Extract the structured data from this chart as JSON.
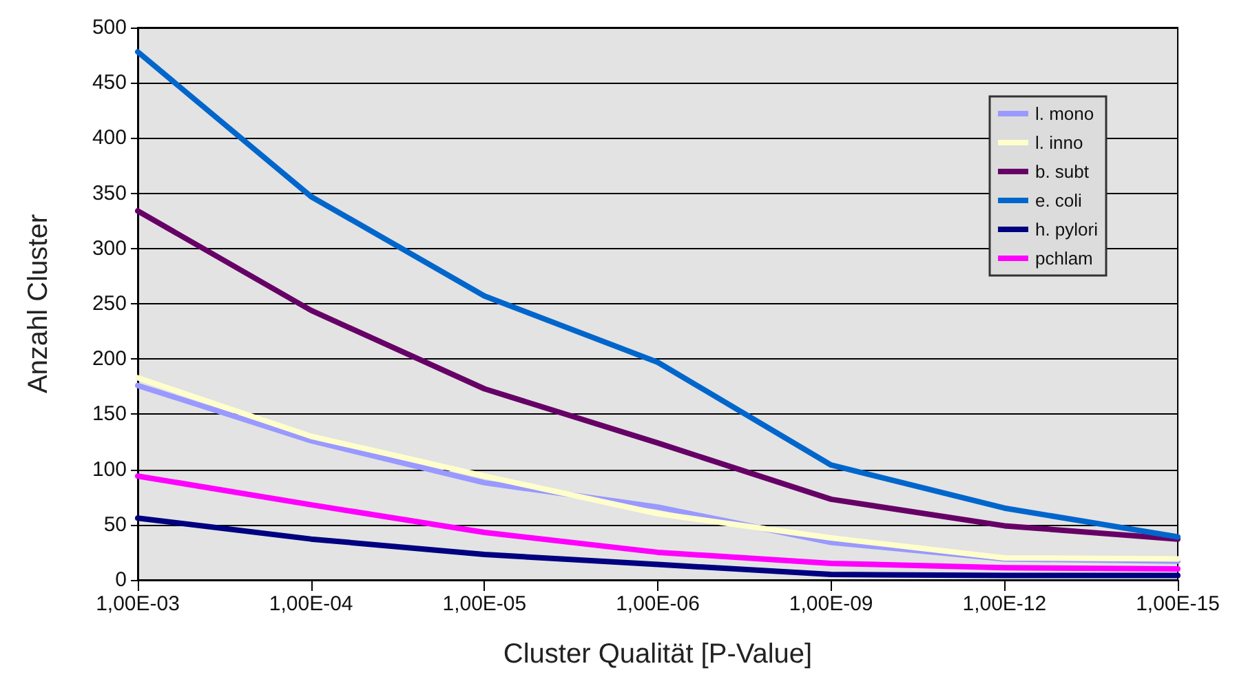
{
  "chart_data": {
    "type": "line",
    "xlabel": "Cluster Qualität [P-Value]",
    "ylabel": "Anzahl Cluster",
    "categories": [
      "1,00E-03",
      "1,00E-04",
      "1,00E-05",
      "1,00E-06",
      "1,00E-09",
      "1,00E-12",
      "1,00E-15"
    ],
    "series": [
      {
        "name": "l. mono",
        "color": "#9999ff",
        "values": [
          176,
          126,
          88,
          66,
          34,
          19,
          17
        ]
      },
      {
        "name": "l. inno",
        "color": "#ffffcc",
        "values": [
          183,
          130,
          94,
          60,
          38,
          20,
          19
        ]
      },
      {
        "name": "b. subt",
        "color": "#660066",
        "values": [
          334,
          244,
          173,
          124,
          73,
          49,
          37
        ]
      },
      {
        "name": "e. coli",
        "color": "#0066cc",
        "values": [
          478,
          347,
          257,
          197,
          104,
          65,
          39
        ]
      },
      {
        "name": "h. pylori",
        "color": "#000080",
        "values": [
          56,
          37,
          23,
          14,
          5,
          4,
          4
        ]
      },
      {
        "name": "pchlam",
        "color": "#ff00ff",
        "values": [
          94,
          68,
          43,
          25,
          15,
          11,
          10
        ]
      }
    ],
    "ylim": [
      0,
      500
    ],
    "yticks": [
      0,
      50,
      100,
      150,
      200,
      250,
      300,
      350,
      400,
      450,
      500
    ],
    "grid": "y",
    "legend": "top right",
    "marker": "none",
    "line_style": "solid"
  }
}
